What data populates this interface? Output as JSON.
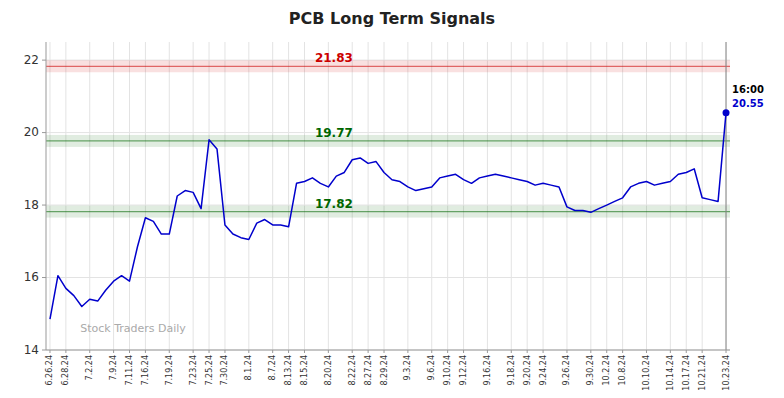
{
  "chart_data": {
    "type": "line",
    "title": "PCB Long Term Signals",
    "color": "#0000cc",
    "grid": true,
    "ylim": [
      14,
      22.5
    ],
    "yticks": [
      14,
      16,
      18,
      20,
      22
    ],
    "categories": [
      "6.26.24",
      null,
      "6.28.24",
      null,
      null,
      "7.2.24",
      null,
      null,
      "7.9.24",
      null,
      "7.11.24",
      null,
      "7.16.24",
      null,
      null,
      "7.19.24",
      null,
      null,
      "7.23.24",
      null,
      "7.25.24",
      null,
      "7.30.24",
      null,
      null,
      "8.1.24",
      null,
      null,
      "8.7.24",
      null,
      "8.13.24",
      null,
      "8.15.24",
      null,
      null,
      "8.20.24",
      null,
      null,
      "8.22.24",
      null,
      "8.27.24",
      null,
      "8.29.24",
      null,
      null,
      "9.3.24",
      null,
      null,
      "9.6.24",
      null,
      "9.10.24",
      null,
      "9.12.24",
      null,
      null,
      "9.16.24",
      null,
      null,
      "9.18.24",
      null,
      "9.20.24",
      null,
      "9.24.24",
      null,
      null,
      "9.26.24",
      null,
      null,
      "9.30.24",
      null,
      "10.2.24",
      null,
      "10.8.24",
      null,
      null,
      "10.10.24",
      null,
      null,
      "10.14.24",
      null,
      "10.17.24",
      null,
      "10.21.24",
      null,
      null,
      "10.23.24"
    ],
    "values": [
      14.85,
      16.05,
      15.7,
      15.5,
      15.2,
      15.4,
      15.35,
      15.65,
      15.9,
      16.05,
      15.9,
      16.85,
      17.65,
      17.55,
      17.2,
      17.2,
      18.25,
      18.4,
      18.35,
      17.9,
      19.8,
      19.55,
      17.45,
      17.2,
      17.1,
      17.05,
      17.5,
      17.6,
      17.45,
      17.45,
      17.4,
      18.6,
      18.65,
      18.75,
      18.6,
      18.5,
      18.8,
      18.9,
      19.25,
      19.3,
      19.15,
      19.2,
      18.9,
      18.7,
      18.65,
      18.5,
      18.4,
      18.45,
      18.5,
      18.75,
      18.8,
      18.85,
      18.7,
      18.6,
      18.75,
      18.8,
      18.85,
      18.8,
      18.75,
      18.7,
      18.65,
      18.55,
      18.6,
      18.55,
      18.5,
      17.95,
      17.85,
      17.85,
      17.8,
      17.9,
      18.0,
      18.1,
      18.2,
      18.5,
      18.6,
      18.65,
      18.55,
      18.6,
      18.65,
      18.85,
      18.9,
      19.0,
      18.2,
      18.15,
      18.1,
      20.55
    ],
    "reference_lines": [
      {
        "value": 21.83,
        "label": "21.83",
        "color": "#cc0000"
      },
      {
        "value": 19.77,
        "label": "19.77",
        "color": "#006600"
      },
      {
        "value": 17.82,
        "label": "17.82",
        "color": "#006600"
      }
    ],
    "last_label": {
      "time": "16:00",
      "price": "20.55"
    },
    "watermark": "Stock Traders Daily"
  }
}
